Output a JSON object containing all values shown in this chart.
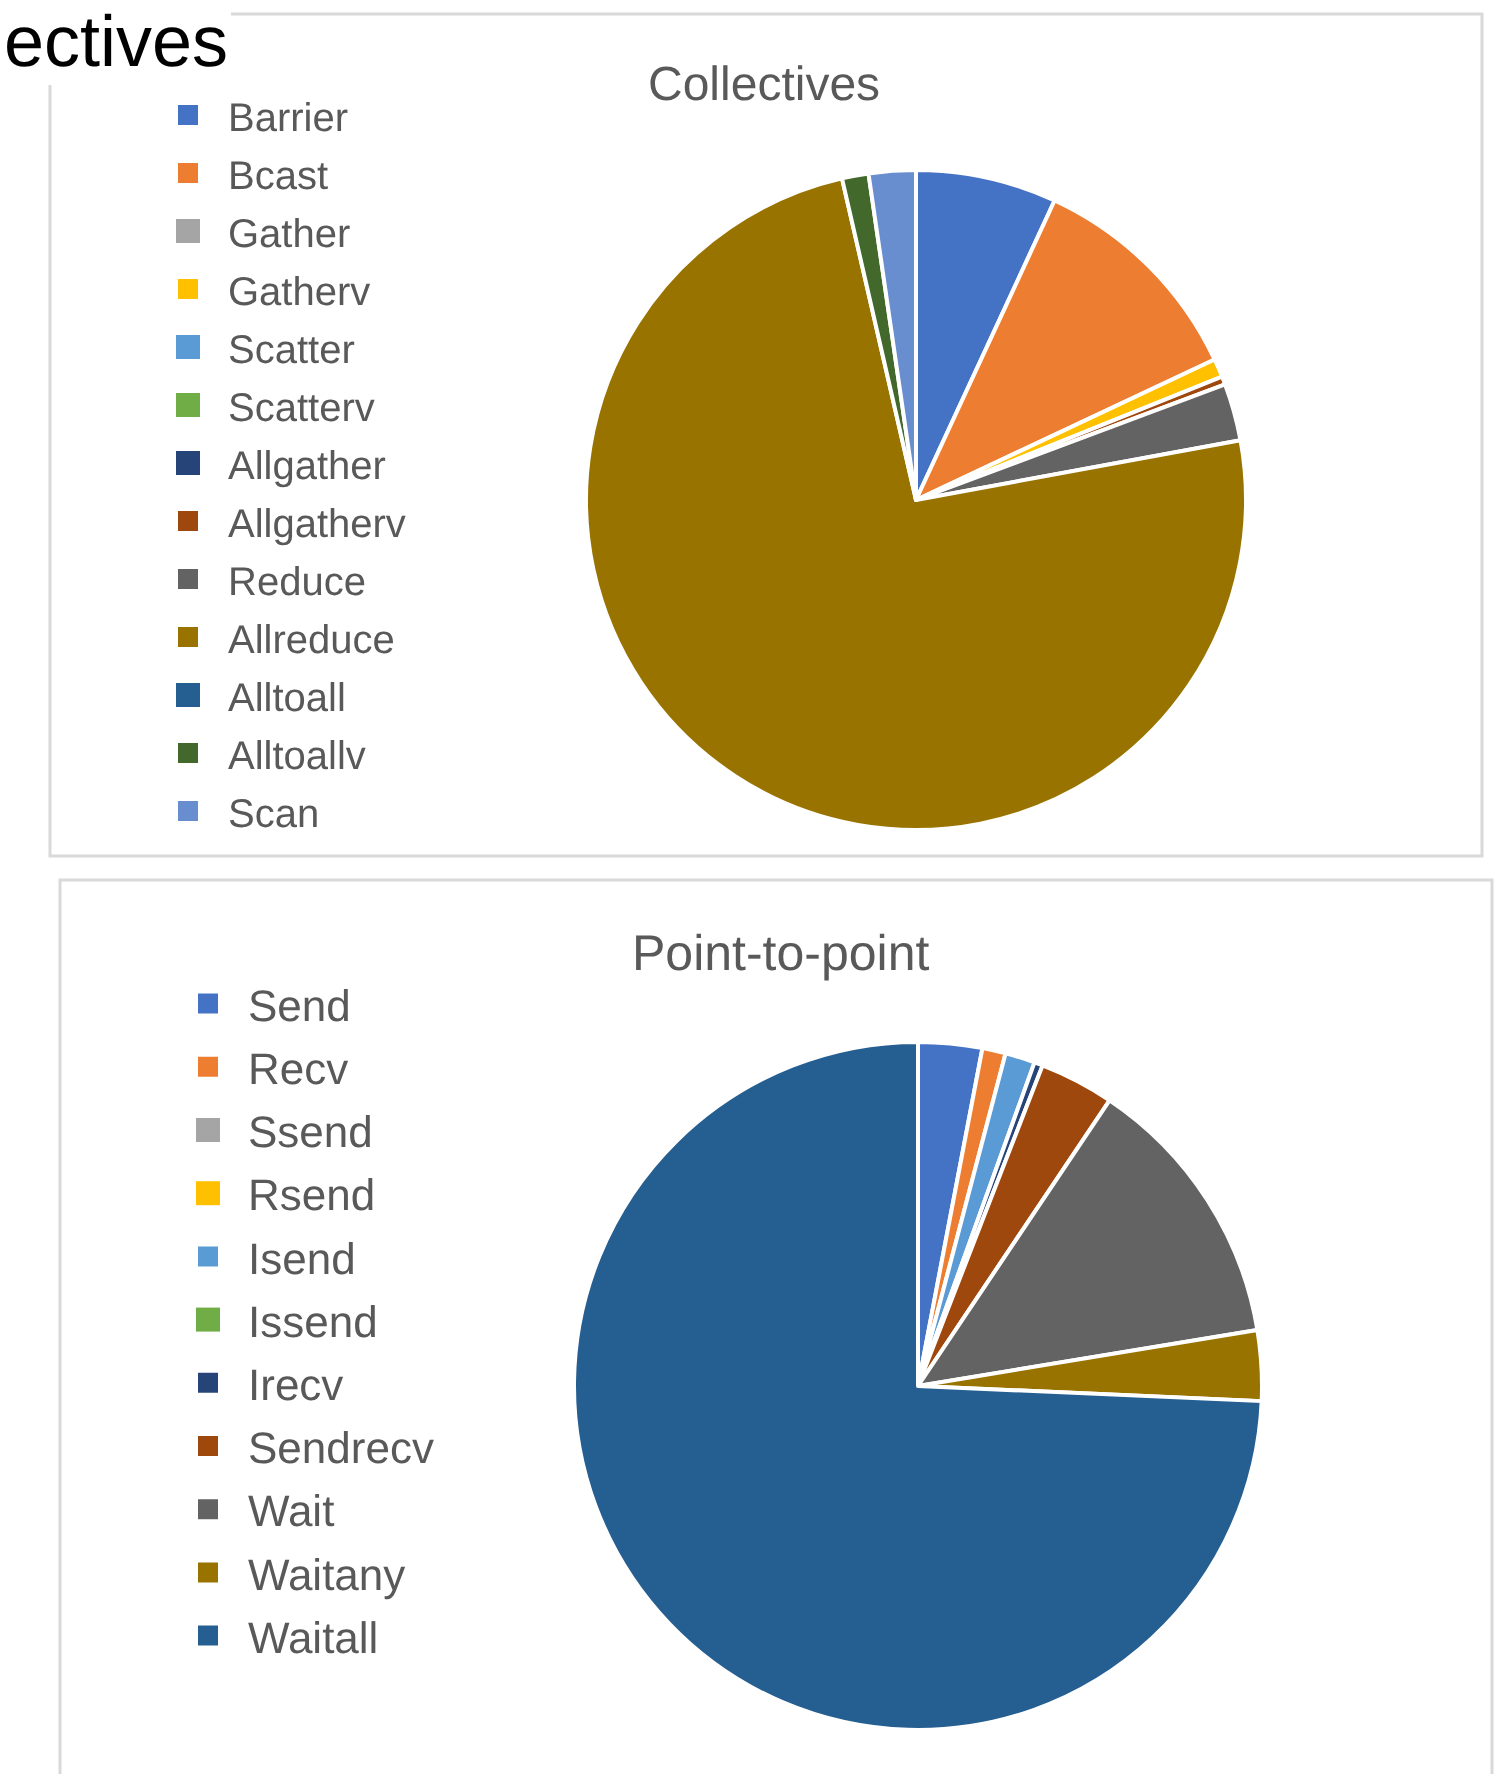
{
  "chart_data": [
    {
      "type": "pie",
      "title": "Collectives",
      "annotations": [
        "ectives"
      ],
      "legend": "left",
      "categories": [
        "Barrier",
        "Bcast",
        "Gather",
        "Gatherv",
        "Scatter",
        "Scatterv",
        "Allgather",
        "Allgatherv",
        "Reduce",
        "Allreduce",
        "Alltoall",
        "Alltoallv",
        "Scan"
      ],
      "values": [
        6.9,
        11.1,
        0,
        0.9,
        0,
        0,
        0,
        0.4,
        2.8,
        74.3,
        0,
        1.3,
        2.3
      ],
      "colors": [
        "#4472c4",
        "#ed7d31",
        "#a5a5a5",
        "#ffc000",
        "#5b9bd5",
        "#70ad47",
        "#264478",
        "#9e480e",
        "#636363",
        "#997300",
        "#255e91",
        "#43682b",
        "#698ed0"
      ]
    },
    {
      "type": "pie",
      "title": "Point-to-point",
      "legend": "left",
      "categories": [
        "Send",
        "Recv",
        "Ssend",
        "Rsend",
        "Isend",
        "Issend",
        "Irecv",
        "Sendrecv",
        "Wait",
        "Waitany",
        "Waitall"
      ],
      "values": [
        3.0,
        1.1,
        0,
        0,
        1.4,
        0,
        0.4,
        3.5,
        13.0,
        3.3,
        74.3
      ],
      "colors": [
        "#4472c4",
        "#ed7d31",
        "#a5a5a5",
        "#ffc000",
        "#5b9bd5",
        "#70ad47",
        "#264478",
        "#9e480e",
        "#636363",
        "#997300",
        "#255e91"
      ]
    }
  ]
}
